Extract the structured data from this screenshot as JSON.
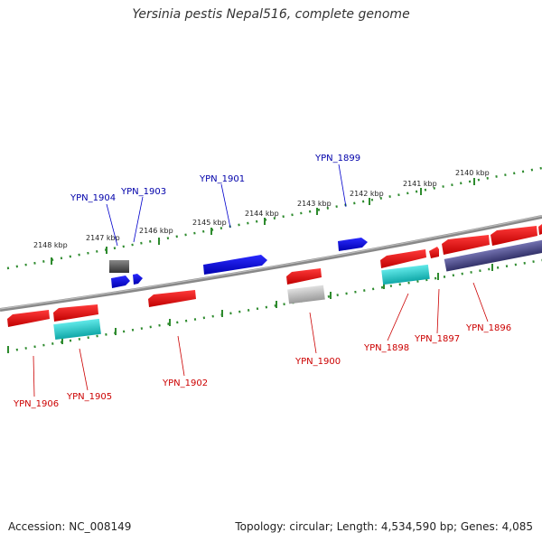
{
  "title": "Yersinia pestis Nepal516, complete genome",
  "footer": {
    "accession": "Accession: NC_008149",
    "summary": "Topology: circular; Length: 4,534,590 bp; Genes: 4,085"
  },
  "colors": {
    "background": "#ffffff",
    "backbone": "#808080",
    "ruler_ticks": "#2e8b2e",
    "forward_gene": "#0000ee",
    "reverse_gene": "#ee0000",
    "rna": "#20c8c8",
    "pseudo_gray": "#a0a0a0",
    "pseudo_purple": "#4b4a8a"
  },
  "ruler_labels": [
    "2140 kbp",
    "2141 kbp",
    "2142 kbp",
    "2143 kbp",
    "2144 kbp",
    "2145 kbp",
    "2146 kbp",
    "2147 kbp",
    "2148 kbp"
  ],
  "gene_labels": {
    "top": [
      "YPN_1899",
      "YPN_1901",
      "YPN_1903",
      "YPN_1904"
    ],
    "bottom": [
      "YPN_1896",
      "YPN_1897",
      "YPN_1898",
      "YPN_1900",
      "YPN_1902",
      "YPN_1905",
      "YPN_1906"
    ]
  }
}
